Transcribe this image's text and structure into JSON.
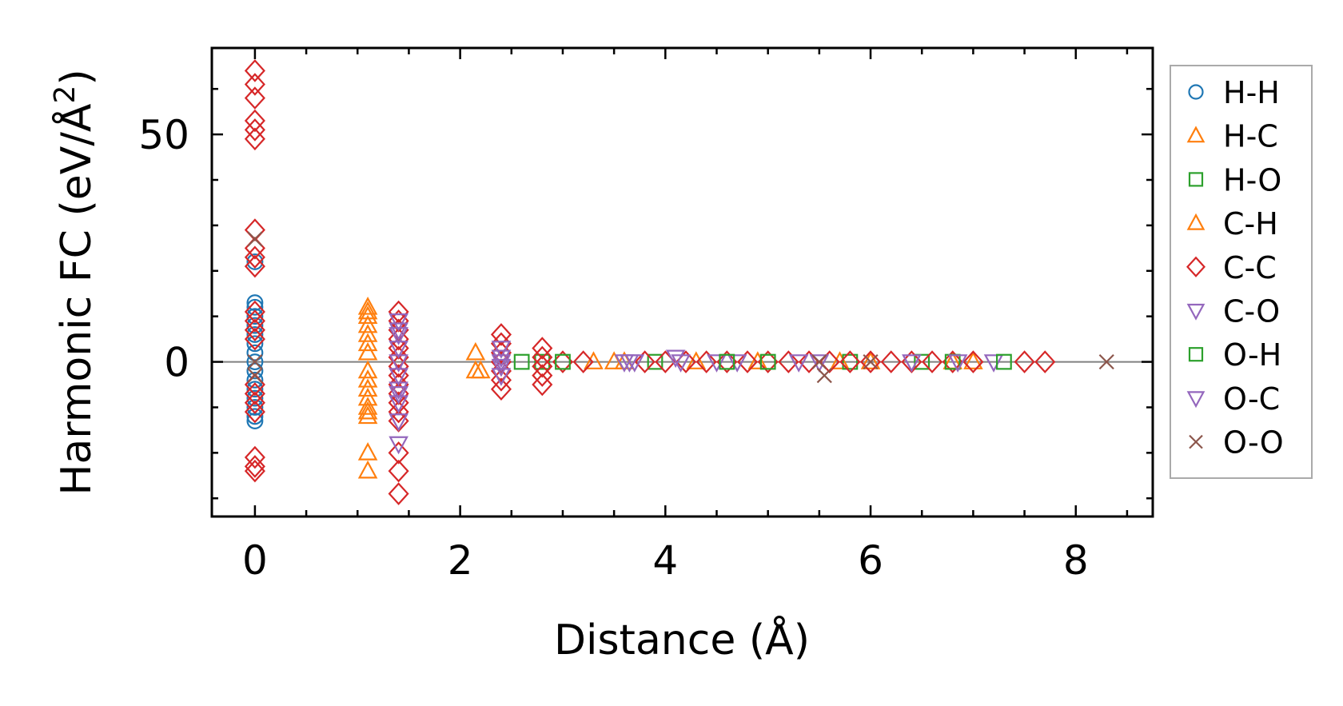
{
  "chart_data": {
    "type": "scatter",
    "title": "",
    "xlabel": "Distance (Å)",
    "ylabel_main": "Harmonic FC (eV/Å",
    "ylabel_sup": "2",
    "ylabel_close": ")",
    "xlim": [
      -0.42,
      8.75
    ],
    "ylim": [
      -34,
      69
    ],
    "xticks": [
      0,
      2,
      4,
      6,
      8
    ],
    "yticks": [
      0,
      50
    ],
    "x_minor_step": 0.5,
    "y_minor_step": 10,
    "zero_line": true,
    "grid": false,
    "legend_position": "outside-right",
    "series": [
      {
        "name": "H-H",
        "marker": "circle",
        "color": "#1f77b4",
        "points": [
          [
            0,
            22
          ],
          [
            0,
            13
          ],
          [
            0,
            12
          ],
          [
            0,
            10
          ],
          [
            0,
            8
          ],
          [
            0,
            6
          ],
          [
            0,
            4
          ],
          [
            0,
            2
          ],
          [
            0,
            0
          ],
          [
            0,
            -2
          ],
          [
            0,
            -4
          ],
          [
            0,
            -6
          ],
          [
            0,
            -8
          ],
          [
            0,
            -10
          ],
          [
            0,
            -12
          ],
          [
            0,
            -13
          ]
        ]
      },
      {
        "name": "H-C",
        "marker": "triangle-up",
        "color": "#ff7f0e",
        "points": [
          [
            1.1,
            12
          ],
          [
            1.1,
            10
          ],
          [
            1.1,
            8
          ],
          [
            1.1,
            6
          ],
          [
            1.1,
            4
          ],
          [
            1.1,
            2
          ],
          [
            1.1,
            -2
          ],
          [
            1.1,
            -4
          ],
          [
            1.1,
            -6
          ],
          [
            1.1,
            -8
          ],
          [
            1.1,
            -10
          ],
          [
            1.1,
            -12
          ],
          [
            1.1,
            -20
          ],
          [
            1.1,
            -24
          ],
          [
            2.15,
            2
          ],
          [
            2.15,
            -2
          ],
          [
            3.3,
            0
          ],
          [
            3.5,
            0
          ],
          [
            4.3,
            0
          ],
          [
            5.7,
            0
          ],
          [
            6.8,
            0
          ],
          [
            7.0,
            0
          ]
        ]
      },
      {
        "name": "H-O",
        "marker": "square",
        "color": "#2ca02c",
        "points": [
          [
            2.6,
            0
          ],
          [
            2.8,
            0
          ],
          [
            3.9,
            0
          ],
          [
            5.8,
            0
          ],
          [
            6.5,
            0
          ]
        ]
      },
      {
        "name": "C-H",
        "marker": "triangle-up",
        "color": "#ff7f0e",
        "points": [
          [
            1.1,
            11
          ],
          [
            1.1,
            -11
          ],
          [
            2.2,
            -2
          ],
          [
            3.6,
            0
          ],
          [
            4.9,
            0
          ],
          [
            6.0,
            0
          ]
        ]
      },
      {
        "name": "C-C",
        "marker": "diamond",
        "color": "#d62728",
        "points": [
          [
            0,
            64
          ],
          [
            0,
            61
          ],
          [
            0,
            58
          ],
          [
            0,
            53
          ],
          [
            0,
            51
          ],
          [
            0,
            49
          ],
          [
            0,
            29
          ],
          [
            0,
            25
          ],
          [
            0,
            23
          ],
          [
            0,
            21
          ],
          [
            0,
            11
          ],
          [
            0,
            9
          ],
          [
            0,
            7
          ],
          [
            0,
            5
          ],
          [
            0,
            -5
          ],
          [
            0,
            -7
          ],
          [
            0,
            -9
          ],
          [
            0,
            -11
          ],
          [
            0,
            -21
          ],
          [
            0,
            -23
          ],
          [
            0,
            -24
          ],
          [
            1.4,
            11
          ],
          [
            1.4,
            9
          ],
          [
            1.4,
            7
          ],
          [
            1.4,
            5
          ],
          [
            1.4,
            3
          ],
          [
            1.4,
            1
          ],
          [
            1.4,
            -1
          ],
          [
            1.4,
            -3
          ],
          [
            1.4,
            -5
          ],
          [
            1.4,
            -7
          ],
          [
            1.4,
            -9
          ],
          [
            1.4,
            -11
          ],
          [
            1.4,
            -13
          ],
          [
            1.4,
            -20
          ],
          [
            1.4,
            -24
          ],
          [
            1.4,
            -29
          ],
          [
            2.4,
            6
          ],
          [
            2.4,
            4
          ],
          [
            2.4,
            2
          ],
          [
            2.4,
            0
          ],
          [
            2.4,
            -2
          ],
          [
            2.4,
            -4
          ],
          [
            2.4,
            -6
          ],
          [
            2.8,
            3
          ],
          [
            2.8,
            1
          ],
          [
            2.8,
            -1
          ],
          [
            2.8,
            -3
          ],
          [
            2.8,
            -5
          ],
          [
            3.0,
            0
          ],
          [
            3.2,
            0
          ],
          [
            3.8,
            0
          ],
          [
            4.0,
            0
          ],
          [
            4.2,
            0
          ],
          [
            4.4,
            0
          ],
          [
            4.6,
            0
          ],
          [
            4.8,
            0
          ],
          [
            5.0,
            0
          ],
          [
            5.2,
            0
          ],
          [
            5.4,
            0
          ],
          [
            5.6,
            0
          ],
          [
            5.8,
            0
          ],
          [
            6.0,
            0
          ],
          [
            6.2,
            0
          ],
          [
            6.4,
            0
          ],
          [
            6.6,
            0
          ],
          [
            6.8,
            0
          ],
          [
            7.0,
            0
          ],
          [
            7.5,
            0
          ],
          [
            7.7,
            0
          ]
        ]
      },
      {
        "name": "C-O",
        "marker": "triangle-down",
        "color": "#9467bd",
        "points": [
          [
            1.4,
            9
          ],
          [
            1.4,
            6
          ],
          [
            1.4,
            3
          ],
          [
            1.4,
            0
          ],
          [
            1.4,
            -3
          ],
          [
            1.4,
            -6
          ],
          [
            1.4,
            -9
          ],
          [
            1.4,
            -13
          ],
          [
            1.4,
            -18
          ],
          [
            2.4,
            3
          ],
          [
            2.4,
            0
          ],
          [
            2.4,
            -3
          ],
          [
            3.6,
            0
          ],
          [
            3.7,
            0
          ],
          [
            4.1,
            1
          ],
          [
            4.5,
            0
          ],
          [
            4.7,
            0
          ],
          [
            5.3,
            0
          ],
          [
            6.4,
            0
          ],
          [
            7.2,
            0
          ]
        ]
      },
      {
        "name": "O-H",
        "marker": "square",
        "color": "#2ca02c",
        "points": [
          [
            3.0,
            0
          ],
          [
            4.6,
            0
          ],
          [
            5.0,
            0
          ],
          [
            6.8,
            0
          ],
          [
            7.3,
            0
          ]
        ]
      },
      {
        "name": "O-C",
        "marker": "triangle-down",
        "color": "#9467bd",
        "points": [
          [
            1.4,
            7
          ],
          [
            1.4,
            -7
          ],
          [
            2.4,
            1
          ],
          [
            2.4,
            -1
          ],
          [
            3.65,
            0
          ],
          [
            4.15,
            0
          ],
          [
            5.5,
            0
          ],
          [
            6.85,
            0
          ]
        ]
      },
      {
        "name": "O-O",
        "marker": "x",
        "color": "#8c564b",
        "points": [
          [
            0,
            27
          ],
          [
            0,
            0
          ],
          [
            0,
            -3
          ],
          [
            5.5,
            0
          ],
          [
            5.55,
            -3
          ],
          [
            6.0,
            0
          ],
          [
            8.3,
            0
          ]
        ]
      }
    ]
  }
}
